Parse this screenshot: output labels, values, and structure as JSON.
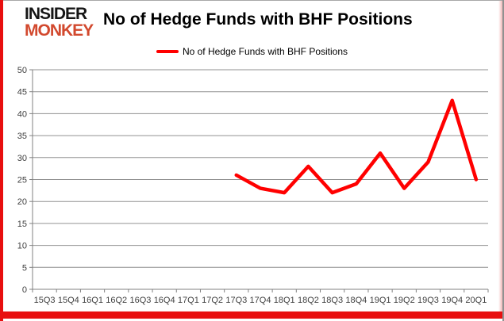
{
  "header": {
    "logo_line1": "INSIDER",
    "logo_line2": "MONKEY",
    "title": "No of Hedge Funds with BHF Positions"
  },
  "legend": {
    "label": "No of Hedge Funds with BHF Positions"
  },
  "colors": {
    "series": "#ff0000",
    "logo_accent": "#d2492e",
    "frame_accent": "#e80f0f",
    "grid": "#909090",
    "axis": "#808080",
    "axis_text": "#404040"
  },
  "chart_data": {
    "type": "line",
    "title": "No of Hedge Funds with BHF Positions",
    "categories": [
      "15Q3",
      "15Q4",
      "16Q1",
      "16Q2",
      "16Q3",
      "16Q4",
      "17Q1",
      "17Q2",
      "17Q3",
      "17Q4",
      "18Q1",
      "18Q2",
      "18Q3",
      "18Q4",
      "19Q1",
      "19Q2",
      "19Q3",
      "19Q4",
      "20Q1"
    ],
    "series": [
      {
        "name": "No of Hedge Funds with BHF Positions",
        "color": "#ff0000",
        "values": [
          null,
          null,
          null,
          null,
          null,
          null,
          null,
          null,
          26,
          23,
          22,
          28,
          22,
          24,
          31,
          23,
          29,
          43,
          25
        ]
      }
    ],
    "ylim": [
      0,
      50
    ],
    "ytick_step": 5,
    "grid": true,
    "legend_position": "top",
    "xlabel": "",
    "ylabel": ""
  }
}
